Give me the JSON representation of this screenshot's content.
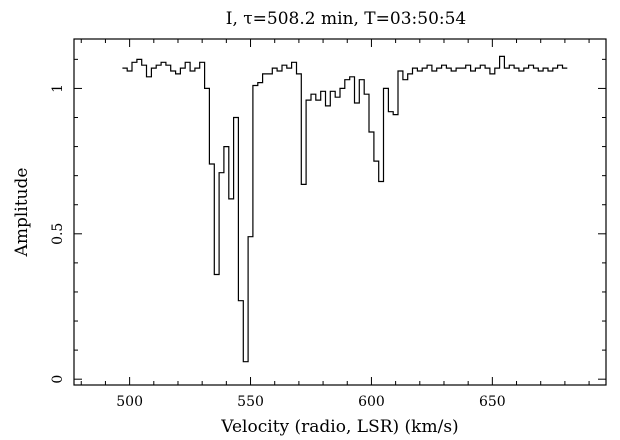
{
  "chart_data": {
    "type": "line",
    "style": "step",
    "title": "I, τ=508.2 min, T=03:50:54",
    "xlabel": "Velocity (radio, LSR) (km/s)",
    "ylabel": "Amplitude",
    "xlim": [
      477,
      697
    ],
    "ylim": [
      -0.02,
      1.17
    ],
    "xticks": [
      500,
      550,
      600,
      650
    ],
    "xtick_labels": [
      "500",
      "550",
      "600",
      "650"
    ],
    "yticks": [
      0,
      0.5,
      1
    ],
    "ytick_labels": [
      "0",
      "0.5",
      "1"
    ],
    "grid": false,
    "legend": "none",
    "x": [
      498,
      500,
      502,
      504,
      506,
      508,
      510,
      512,
      514,
      516,
      518,
      520,
      522,
      524,
      526,
      528,
      530,
      532,
      534,
      536,
      538,
      540,
      542,
      544,
      546,
      548,
      550,
      552,
      554,
      556,
      558,
      560,
      562,
      564,
      566,
      568,
      570,
      572,
      574,
      576,
      578,
      580,
      582,
      584,
      586,
      588,
      590,
      592,
      594,
      596,
      598,
      600,
      602,
      604,
      606,
      608,
      610,
      612,
      614,
      616,
      618,
      620,
      622,
      624,
      626,
      628,
      630,
      632,
      634,
      636,
      638,
      640,
      642,
      644,
      646,
      648,
      650,
      652,
      654,
      656,
      658,
      660,
      662,
      664,
      666,
      668,
      670,
      672,
      674,
      676,
      678,
      680
    ],
    "y": [
      1.07,
      1.06,
      1.09,
      1.1,
      1.08,
      1.04,
      1.07,
      1.08,
      1.09,
      1.08,
      1.06,
      1.05,
      1.07,
      1.09,
      1.06,
      1.07,
      1.09,
      1.0,
      0.74,
      0.36,
      0.71,
      0.8,
      0.62,
      0.9,
      0.27,
      0.06,
      0.49,
      1.01,
      1.02,
      1.05,
      1.05,
      1.07,
      1.06,
      1.08,
      1.07,
      1.09,
      1.05,
      0.67,
      0.96,
      0.98,
      0.96,
      0.99,
      0.94,
      0.99,
      0.97,
      1.0,
      1.03,
      1.04,
      0.95,
      1.03,
      0.98,
      0.85,
      0.75,
      0.68,
      1.0,
      0.92,
      0.91,
      1.06,
      1.03,
      1.05,
      1.07,
      1.06,
      1.07,
      1.08,
      1.06,
      1.07,
      1.08,
      1.07,
      1.06,
      1.07,
      1.07,
      1.08,
      1.06,
      1.07,
      1.08,
      1.07,
      1.05,
      1.07,
      1.11,
      1.07,
      1.08,
      1.07,
      1.06,
      1.07,
      1.08,
      1.07,
      1.06,
      1.07,
      1.06,
      1.07,
      1.08,
      1.07
    ]
  }
}
